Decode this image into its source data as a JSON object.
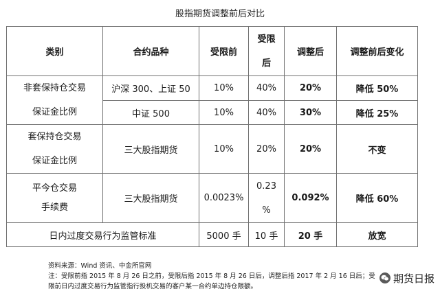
{
  "title": "股指期货调整前后对比",
  "table": {
    "headers": {
      "category": "类别",
      "contract": "合约品种",
      "before": "受限前",
      "restricted": [
        "受限",
        "后"
      ],
      "after": "调整后",
      "change": "调整前后变化"
    },
    "rows": [
      {
        "category": [
          "非套保持仓交易",
          "保证金比例"
        ],
        "sub": [
          {
            "contract": "沪深 300、上证 50",
            "before": "10%",
            "restricted": "40%",
            "after": "20%",
            "change": "降低 50%"
          },
          {
            "contract": "中证 500",
            "before": "10%",
            "restricted": "40%",
            "after": "30%",
            "change": "降低 25%"
          }
        ]
      },
      {
        "category": [
          "套保持仓交易",
          "保证金比例"
        ],
        "contract": "三大股指期货",
        "before": "10%",
        "restricted": "20%",
        "after": "20%",
        "change": "不变"
      },
      {
        "category": [
          "平今仓交易",
          "手续费"
        ],
        "contract": "三大股指期货",
        "before": "0.0023%",
        "restricted": [
          "0.23",
          "%"
        ],
        "after": "0.092%",
        "change": "降低 60%"
      },
      {
        "category": "日内过度交易行为监管标准",
        "before": "5000 手",
        "restricted": "10 手",
        "after": "20 手",
        "change": "放宽"
      }
    ]
  },
  "notes": {
    "source": "资料来源：Wind 资讯、中金所官网",
    "note1": "注：受限前指 2015 年 8 月 26 日之前，受限后指 2015 年 8 月 26 日后，调整后指 2017 年 2 月 16 日后；受",
    "note2": "限前日内过度交易行为监管指行投机交易的客户某一合约单边持仓限额。"
  },
  "watermark": {
    "text": "期货日报",
    "icon": "wechat-icon"
  }
}
